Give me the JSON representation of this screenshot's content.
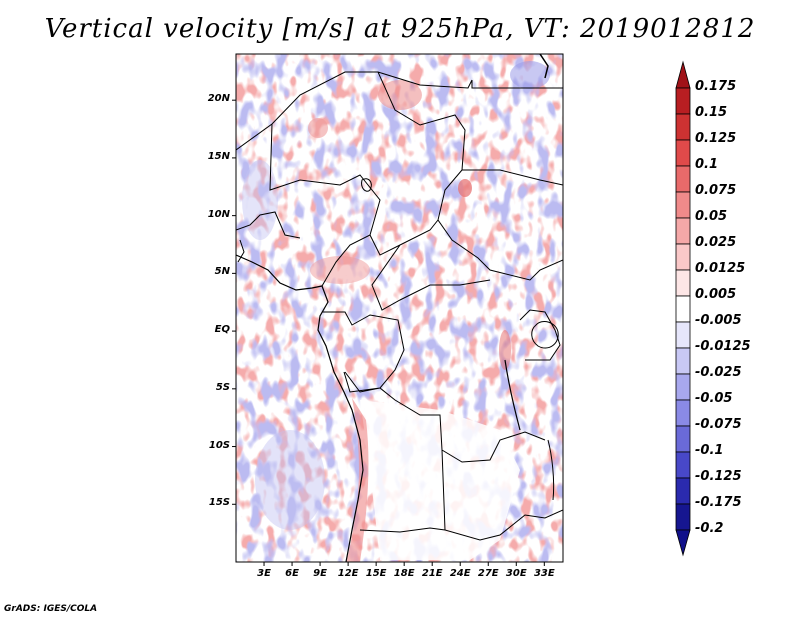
{
  "title": "Vertical velocity [m/s] at 925hPa, VT: 2019012812",
  "credit": "GrADS: IGES/COLA",
  "map": {
    "lon_range": [
      0,
      35
    ],
    "lat_range": [
      -20,
      24
    ],
    "lat_ticks": [
      {
        "value": 20,
        "label": "20N"
      },
      {
        "value": 15,
        "label": "15N"
      },
      {
        "value": 10,
        "label": "10N"
      },
      {
        "value": 5,
        "label": "5N"
      },
      {
        "value": 0,
        "label": "EQ"
      },
      {
        "value": -5,
        "label": "5S"
      },
      {
        "value": -10,
        "label": "10S"
      },
      {
        "value": -15,
        "label": "15S"
      }
    ],
    "lon_ticks": [
      {
        "value": 3,
        "label": "3E"
      },
      {
        "value": 6,
        "label": "6E"
      },
      {
        "value": 9,
        "label": "9E"
      },
      {
        "value": 12,
        "label": "12E"
      },
      {
        "value": 15,
        "label": "15E"
      },
      {
        "value": 18,
        "label": "18E"
      },
      {
        "value": 21,
        "label": "21E"
      },
      {
        "value": 24,
        "label": "24E"
      },
      {
        "value": 27,
        "label": "27E"
      },
      {
        "value": 30,
        "label": "30E"
      },
      {
        "value": 33,
        "label": "33E"
      }
    ]
  },
  "colorbar": {
    "labels": [
      "0.175",
      "0.15",
      "0.125",
      "0.1",
      "0.075",
      "0.05",
      "0.025",
      "0.0125",
      "0.005",
      "-0.005",
      "-0.0125",
      "-0.025",
      "-0.05",
      "-0.075",
      "-0.1",
      "-0.125",
      "-0.175",
      "-0.2"
    ],
    "colors": [
      "#a01218",
      "#b81e22",
      "#cd3232",
      "#e04a4a",
      "#e86a6a",
      "#f08a8a",
      "#f5a8a8",
      "#fac8c8",
      "#fde6e6",
      "#ffffff",
      "#e6e6fb",
      "#c8c8f5",
      "#a8a8ee",
      "#8a8ae6",
      "#6a6ad8",
      "#4848c8",
      "#2a2aae",
      "#161690",
      "#10108a"
    ]
  }
}
